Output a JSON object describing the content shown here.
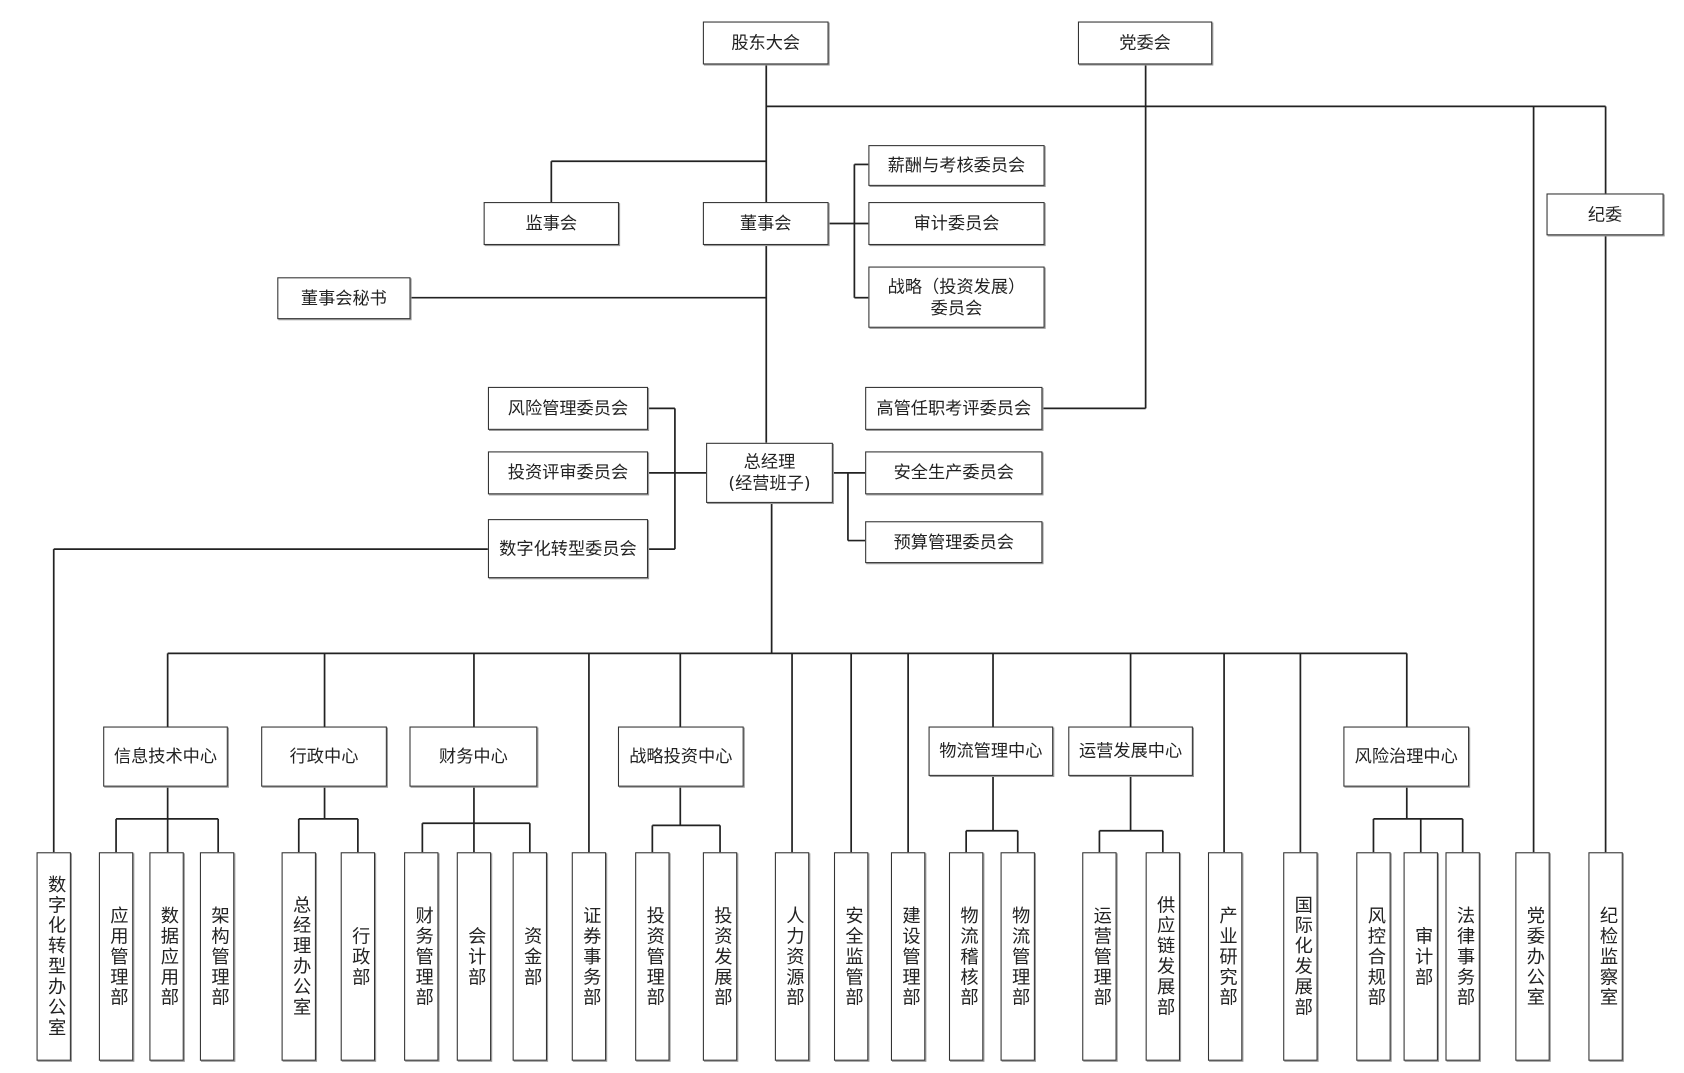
{
  "nodes": {
    "shareholders_meeting": "股东大会",
    "party_committee": "党委会",
    "board_of_supervisors": "监事会",
    "board_of_directors": "董事会",
    "compensation_committee": "薪酬与考核委员会",
    "audit_committee": "审计委员会",
    "strategy_committee": "战略（投资发展）\n委员会",
    "board_secretary": "董事会秘书",
    "discipline_committee": "纪委",
    "executive_evaluation_committee": "高管任职考评委员会",
    "general_manager": "总经理\n(经营班子)",
    "risk_management_committee": "风险管理委员会",
    "investment_review_committee": "投资评审委员会",
    "digital_transformation_committee": "数字化转型委员会",
    "safety_production_committee": "安全生产委员会",
    "budget_management_committee": "预算管理委员会",
    "it_center": "信息技术中心",
    "admin_center": "行政中心",
    "finance_center": "财务中心",
    "strategic_investment_center": "战略投资中心",
    "logistics_center": "物流管理中心",
    "operations_center": "运营发展中心",
    "risk_governance_center": "风险治理中心"
  },
  "departments": {
    "digital_office": "数字化转型办公室",
    "application_mgmt": "应用管理部",
    "data_application": "数据应用部",
    "architecture_mgmt": "架构管理部",
    "gm_office": "总经理办公室",
    "admin_dept": "行政部",
    "financial_mgmt": "财务管理部",
    "accounting": "会计部",
    "treasury": "资金部",
    "securities_affairs": "证券事务部",
    "investment_mgmt": "投资管理部",
    "investment_dev": "投资发展部",
    "human_resources": "人力资源部",
    "safety_supervision": "安全监管部",
    "construction_mgmt": "建设管理部",
    "logistics_audit": "物流稽核部",
    "logistics_mgmt": "物流管理部",
    "operations_mgmt": "运营管理部",
    "supply_chain_dev": "供应链发展部",
    "industry_research": "产业研究部",
    "internationalization": "国际化发展部",
    "risk_compliance": "风控合规部",
    "audit_dept": "审计部",
    "legal_affairs": "法律事务部",
    "party_office": "党委办公室",
    "discipline_inspection": "纪检监察室"
  },
  "colors": {
    "line": "#222222",
    "box_border": "#333333",
    "background": "#ffffff"
  }
}
